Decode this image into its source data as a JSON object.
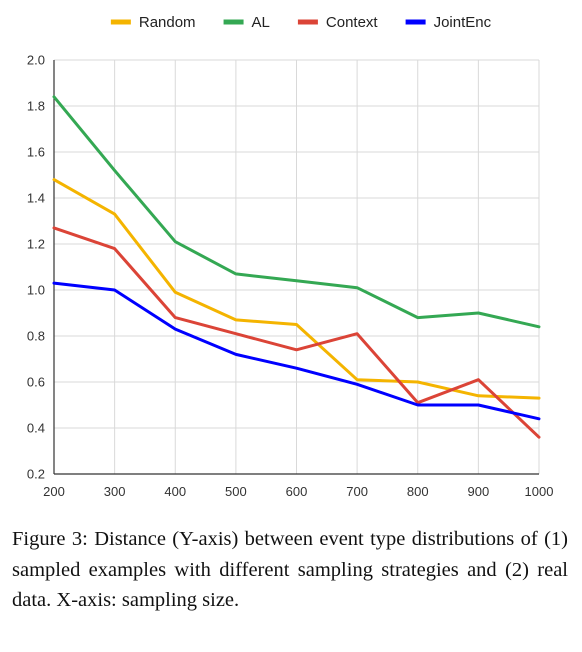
{
  "chart_data": {
    "type": "line",
    "x": [
      200,
      300,
      400,
      500,
      600,
      700,
      800,
      900,
      1000
    ],
    "x_tick_labels": [
      "200",
      "300",
      "400",
      "500",
      "600",
      "700",
      "800",
      "900",
      "1000"
    ],
    "y_tick_labels": [
      "0.2",
      "0.4",
      "0.6",
      "0.8",
      "1.0",
      "1.2",
      "1.4",
      "1.6",
      "1.8",
      "2.0"
    ],
    "ylim": [
      0.2,
      2.0
    ],
    "xlim": [
      200,
      1000
    ],
    "grid": true,
    "legend_position": "top-center",
    "series": [
      {
        "name": "Random",
        "color": "#F4B400",
        "values": [
          1.48,
          1.33,
          0.99,
          0.87,
          0.85,
          0.61,
          0.6,
          0.54,
          0.53
        ]
      },
      {
        "name": "AL",
        "color": "#34A853",
        "values": [
          1.84,
          1.52,
          1.21,
          1.07,
          1.04,
          1.01,
          0.88,
          0.9,
          0.84
        ]
      },
      {
        "name": "Context",
        "color": "#DB4437",
        "values": [
          1.27,
          1.18,
          0.88,
          0.81,
          0.74,
          0.81,
          0.51,
          0.61,
          0.36
        ]
      },
      {
        "name": "JointEnc",
        "color": "#0000FF",
        "values": [
          1.03,
          1.0,
          0.83,
          0.72,
          0.66,
          0.59,
          0.5,
          0.5,
          0.44
        ]
      }
    ]
  },
  "caption": "Figure 3: Distance (Y-axis) between event type distributions of (1) sampled examples with different sampling strategies and (2) real data.  X-axis: sampling size."
}
